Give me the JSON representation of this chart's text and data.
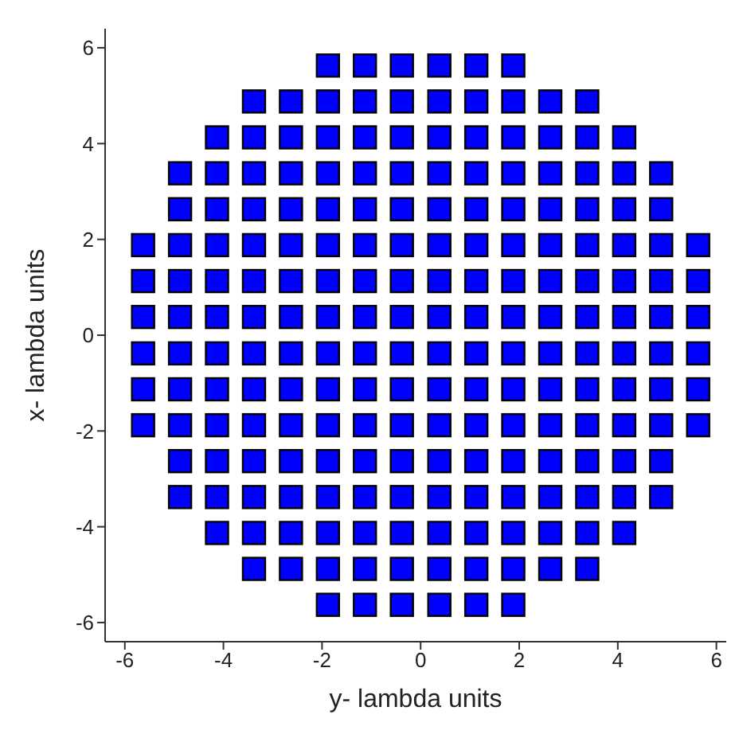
{
  "chart_data": {
    "type": "scatter",
    "xlabel": "y- lambda units",
    "ylabel": "x- lambda units",
    "marker": "square",
    "grid": false,
    "legend": false,
    "xlim": [
      -6.4,
      6.2
    ],
    "ylim": [
      -6.4,
      6.4
    ],
    "xticks": [
      -6,
      -4,
      -2,
      0,
      2,
      4,
      6
    ],
    "yticks": [
      -6,
      -4,
      -2,
      0,
      2,
      4,
      6
    ],
    "series": [
      {
        "color": "#0000ff",
        "x": [
          -1.88,
          -1.13,
          -0.38,
          0.38,
          1.13,
          1.88,
          -3.38,
          -2.63,
          -1.88,
          -1.13,
          -0.38,
          0.38,
          1.13,
          1.88,
          2.63,
          3.38,
          -4.13,
          -3.38,
          -2.63,
          -1.88,
          -1.13,
          -0.38,
          0.38,
          1.13,
          1.88,
          2.63,
          3.38,
          4.13,
          -4.88,
          -4.13,
          -3.38,
          -2.63,
          -1.88,
          -1.13,
          -0.38,
          0.38,
          1.13,
          1.88,
          2.63,
          3.38,
          4.13,
          4.88,
          -4.88,
          -4.13,
          -3.38,
          -2.63,
          -1.88,
          -1.13,
          -0.38,
          0.38,
          1.13,
          1.88,
          2.63,
          3.38,
          4.13,
          4.88,
          -5.63,
          -4.88,
          -4.13,
          -3.38,
          -2.63,
          -1.88,
          -1.13,
          -0.38,
          0.38,
          1.13,
          1.88,
          2.63,
          3.38,
          4.13,
          4.88,
          5.63,
          -5.63,
          -4.88,
          -4.13,
          -3.38,
          -2.63,
          -1.88,
          -1.13,
          -0.38,
          0.38,
          1.13,
          1.88,
          2.63,
          3.38,
          4.13,
          4.88,
          5.63,
          -5.63,
          -4.88,
          -4.13,
          -3.38,
          -2.63,
          -1.88,
          -1.13,
          -0.38,
          0.38,
          1.13,
          1.88,
          2.63,
          3.38,
          4.13,
          4.88,
          5.63,
          -5.63,
          -4.88,
          -4.13,
          -3.38,
          -2.63,
          -1.88,
          -1.13,
          -0.38,
          0.38,
          1.13,
          1.88,
          2.63,
          3.38,
          4.13,
          4.88,
          5.63,
          -5.63,
          -4.88,
          -4.13,
          -3.38,
          -2.63,
          -1.88,
          -1.13,
          -0.38,
          0.38,
          1.13,
          1.88,
          2.63,
          3.38,
          4.13,
          4.88,
          5.63,
          -5.63,
          -4.88,
          -4.13,
          -3.38,
          -2.63,
          -1.88,
          -1.13,
          -0.38,
          0.38,
          1.13,
          1.88,
          2.63,
          3.38,
          4.13,
          4.88,
          5.63,
          -4.88,
          -4.13,
          -3.38,
          -2.63,
          -1.88,
          -1.13,
          -0.38,
          0.38,
          1.13,
          1.88,
          2.63,
          3.38,
          4.13,
          4.88,
          -4.88,
          -4.13,
          -3.38,
          -2.63,
          -1.88,
          -1.13,
          -0.38,
          0.38,
          1.13,
          1.88,
          2.63,
          3.38,
          4.13,
          4.88,
          -4.13,
          -3.38,
          -2.63,
          -1.88,
          -1.13,
          -0.38,
          0.38,
          1.13,
          1.88,
          2.63,
          3.38,
          4.13,
          -3.38,
          -2.63,
          -1.88,
          -1.13,
          -0.38,
          0.38,
          1.13,
          1.88,
          2.63,
          3.38,
          -1.88,
          -1.13,
          -0.38,
          0.38,
          1.13,
          1.88
        ],
        "values": [
          5.63,
          5.63,
          5.63,
          5.63,
          5.63,
          5.63,
          4.88,
          4.88,
          4.88,
          4.88,
          4.88,
          4.88,
          4.88,
          4.88,
          4.88,
          4.88,
          4.13,
          4.13,
          4.13,
          4.13,
          4.13,
          4.13,
          4.13,
          4.13,
          4.13,
          4.13,
          4.13,
          4.13,
          3.38,
          3.38,
          3.38,
          3.38,
          3.38,
          3.38,
          3.38,
          3.38,
          3.38,
          3.38,
          3.38,
          3.38,
          3.38,
          3.38,
          2.63,
          2.63,
          2.63,
          2.63,
          2.63,
          2.63,
          2.63,
          2.63,
          2.63,
          2.63,
          2.63,
          2.63,
          2.63,
          2.63,
          1.88,
          1.88,
          1.88,
          1.88,
          1.88,
          1.88,
          1.88,
          1.88,
          1.88,
          1.88,
          1.88,
          1.88,
          1.88,
          1.88,
          1.88,
          1.88,
          1.13,
          1.13,
          1.13,
          1.13,
          1.13,
          1.13,
          1.13,
          1.13,
          1.13,
          1.13,
          1.13,
          1.13,
          1.13,
          1.13,
          1.13,
          1.13,
          0.38,
          0.38,
          0.38,
          0.38,
          0.38,
          0.38,
          0.38,
          0.38,
          0.38,
          0.38,
          0.38,
          0.38,
          0.38,
          0.38,
          0.38,
          0.38,
          -0.38,
          -0.38,
          -0.38,
          -0.38,
          -0.38,
          -0.38,
          -0.38,
          -0.38,
          -0.38,
          -0.38,
          -0.38,
          -0.38,
          -0.38,
          -0.38,
          -0.38,
          -0.38,
          -1.13,
          -1.13,
          -1.13,
          -1.13,
          -1.13,
          -1.13,
          -1.13,
          -1.13,
          -1.13,
          -1.13,
          -1.13,
          -1.13,
          -1.13,
          -1.13,
          -1.13,
          -1.13,
          -1.88,
          -1.88,
          -1.88,
          -1.88,
          -1.88,
          -1.88,
          -1.88,
          -1.88,
          -1.88,
          -1.88,
          -1.88,
          -1.88,
          -1.88,
          -1.88,
          -1.88,
          -1.88,
          -2.63,
          -2.63,
          -2.63,
          -2.63,
          -2.63,
          -2.63,
          -2.63,
          -2.63,
          -2.63,
          -2.63,
          -2.63,
          -2.63,
          -2.63,
          -2.63,
          -3.38,
          -3.38,
          -3.38,
          -3.38,
          -3.38,
          -3.38,
          -3.38,
          -3.38,
          -3.38,
          -3.38,
          -3.38,
          -3.38,
          -3.38,
          -3.38,
          -4.13,
          -4.13,
          -4.13,
          -4.13,
          -4.13,
          -4.13,
          -4.13,
          -4.13,
          -4.13,
          -4.13,
          -4.13,
          -4.13,
          -4.88,
          -4.88,
          -4.88,
          -4.88,
          -4.88,
          -4.88,
          -4.88,
          -4.88,
          -4.88,
          -4.88,
          -5.63,
          -5.63,
          -5.63,
          -5.63,
          -5.63,
          -5.63
        ]
      }
    ]
  }
}
